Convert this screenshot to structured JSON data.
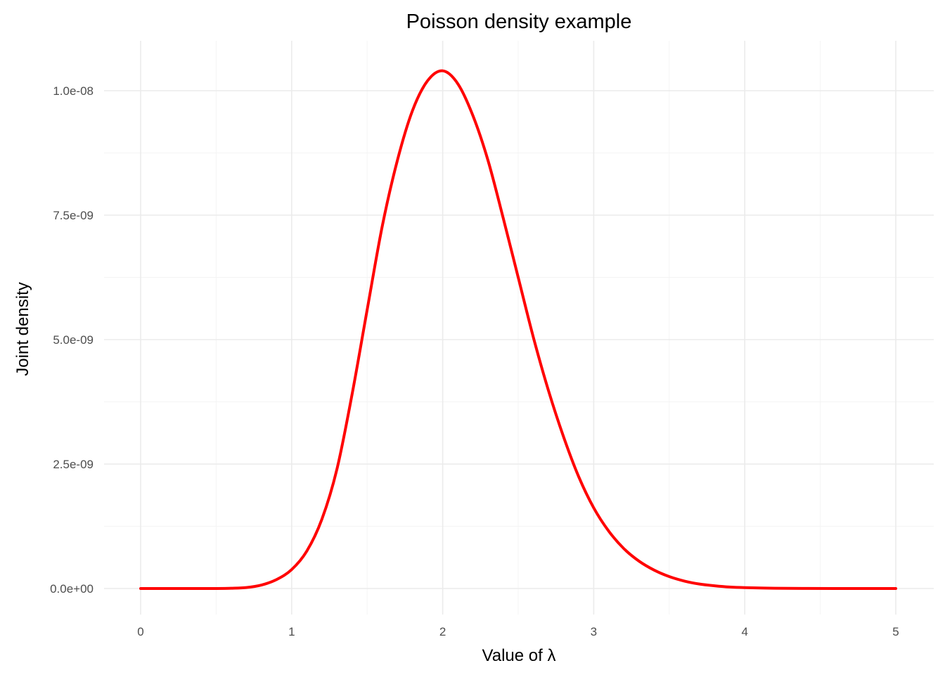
{
  "chart_data": {
    "type": "line",
    "title": "Poisson density example",
    "xlabel": "Value of λ",
    "ylabel": "Joint density",
    "xlim": [
      0,
      5
    ],
    "ylim": [
      0,
      1.04e-08
    ],
    "x_ticks": [
      0,
      1,
      2,
      3,
      4,
      5
    ],
    "x_tick_labels": [
      "0",
      "1",
      "2",
      "3",
      "4",
      "5"
    ],
    "y_ticks": [
      0,
      2.5e-09,
      5e-09,
      7.5e-09,
      1e-08
    ],
    "y_tick_labels": [
      "0.0e+00",
      "2.5e-09",
      "5.0e-09",
      "7.5e-09",
      "1.0e-08"
    ],
    "grid": true,
    "line_color": "#ff0000",
    "series": [
      {
        "x": [
          0,
          0.1,
          0.2,
          0.3,
          0.4,
          0.5,
          0.6,
          0.7,
          0.8,
          0.9,
          1.0,
          1.1,
          1.2,
          1.3,
          1.4,
          1.5,
          1.6,
          1.7,
          1.8,
          1.9,
          2.0,
          2.1,
          2.2,
          2.3,
          2.4,
          2.5,
          2.6,
          2.7,
          2.8,
          2.9,
          3.0,
          3.1,
          3.2,
          3.3,
          3.4,
          3.5,
          3.6,
          3.7,
          3.8,
          3.9,
          4.0,
          4.2,
          4.4,
          4.6,
          4.8,
          5.0
        ],
        "values": [
          0,
          0,
          0,
          0,
          0,
          0,
          5e-12,
          2e-11,
          7e-11,
          1.8e-10,
          3.8e-10,
          7.5e-10,
          1.39e-09,
          2.4e-09,
          3.9e-09,
          5.6e-09,
          7.28e-09,
          8.6e-09,
          9.6e-09,
          1.02e-08,
          1.04e-08,
          1.014e-08,
          9.5e-09,
          8.6e-09,
          7.45e-09,
          6.25e-09,
          5.05e-09,
          3.98e-09,
          3.05e-09,
          2.25e-09,
          1.62e-09,
          1.15e-09,
          8e-10,
          5.5e-10,
          3.7e-10,
          2.4e-10,
          1.5e-10,
          9e-11,
          5.5e-11,
          3e-11,
          1.8e-11,
          6e-12,
          2e-12,
          0,
          0,
          0
        ]
      }
    ]
  }
}
